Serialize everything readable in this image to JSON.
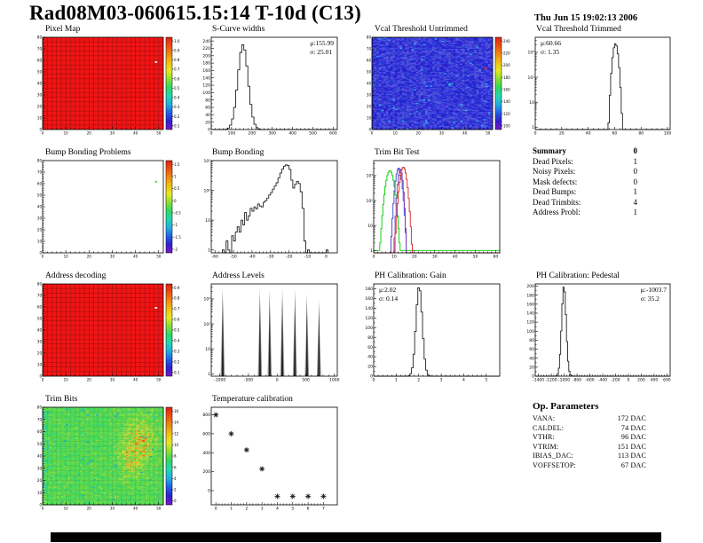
{
  "page": {
    "title": "Rad08M03-060615.15:14 T-10d (C13)",
    "timestamp": "Thu Jun 15 19:02:13 2006"
  },
  "panels": {
    "pixel_map": {
      "title": "Pixel Map"
    },
    "scurve": {
      "title": "S-Curve widths",
      "stats_mu": "μ:155.99",
      "stats_sigma": "σ: 25.01"
    },
    "vcal_untrimmed": {
      "title": "Vcal Threshold Untrimmed"
    },
    "vcal_trimmed": {
      "title": "Vcal Threshold Trimmed",
      "stats_mu": "μ:60.66",
      "stats_sigma": "σ: 1.35"
    },
    "bump_problems": {
      "title": "Bump Bonding Problems"
    },
    "bump_bonding": {
      "title": "Bump Bonding"
    },
    "trim_bit_test": {
      "title": "Trim Bit Test"
    },
    "summary": {
      "title": "Summary",
      "total": "0",
      "rows": [
        {
          "label": "Dead Pixels:",
          "value": "1"
        },
        {
          "label": "Noisy Pixels:",
          "value": "0"
        },
        {
          "label": "Mask defects:",
          "value": "0"
        },
        {
          "label": "Dead Bumps:",
          "value": "1"
        },
        {
          "label": "Dead Trimbits:",
          "value": "4"
        },
        {
          "label": "Address Probl:",
          "value": "1"
        }
      ]
    },
    "address_decoding": {
      "title": "Address decoding"
    },
    "address_levels": {
      "title": "Address Levels"
    },
    "ph_gain": {
      "title": "PH Calibration: Gain",
      "stats_mu": "μ:2.02",
      "stats_sigma": "σ: 0.14"
    },
    "ph_pedestal": {
      "title": "PH Calibration: Pedestal",
      "stats_mu": "μ:-1003.7",
      "stats_sigma": "σ: 35.2"
    },
    "trim_bits": {
      "title": "Trim Bits"
    },
    "temp_cal": {
      "title": "Temperature calibration"
    },
    "op_params": {
      "title": "Op. Parameters",
      "rows": [
        {
          "label": "VANA:",
          "value": "172 DAC"
        },
        {
          "label": "CALDEL:",
          "value": "74 DAC"
        },
        {
          "label": "VTHR:",
          "value": "96 DAC"
        },
        {
          "label": "VTRIM:",
          "value": "151 DAC"
        },
        {
          "label": "IBIAS_DAC:",
          "value": "113 DAC"
        },
        {
          "label": "VOFFSETOP:",
          "value": "67 DAC"
        }
      ]
    }
  },
  "colorbar_palette": [
    "#e02010",
    "#f05010",
    "#f08a10",
    "#f0c010",
    "#e8e820",
    "#8ae030",
    "#30d860",
    "#20d8b0",
    "#20b0e0",
    "#2060e8",
    "#3020d0",
    "#7a18c8"
  ],
  "chart_data": [
    {
      "id": "pixel-map",
      "type": "heatmap",
      "variant": "solid",
      "title": "Pixel Map",
      "base_color": "#f11414",
      "grid_color": "#a50f0f",
      "xlim": [
        0,
        52
      ],
      "ylim": [
        0,
        80
      ],
      "xticks": [
        0,
        10,
        20,
        30,
        40,
        50
      ],
      "yticks": [
        0,
        10,
        20,
        30,
        40,
        50,
        60,
        70,
        80
      ],
      "colorbar_ticks": [
        "1.0",
        "0.9",
        "0.8",
        "0.7",
        "0.6",
        "0.5",
        "0.4",
        "0.3",
        "0.2",
        "0.1"
      ],
      "defects": [
        {
          "fx": 0.93,
          "fy": 0.26,
          "color": "#ffeeee"
        }
      ],
      "seed": 11
    },
    {
      "id": "scurve-widths",
      "type": "hist",
      "title": "S-Curve widths",
      "line_color": "#222222",
      "gauss": {
        "mu": 155.99,
        "sigma": 25.01,
        "amp": 230,
        "binw": 10
      },
      "xlim": [
        0,
        620
      ],
      "xticks": [
        0,
        100,
        200,
        300,
        400,
        500,
        600
      ],
      "yscale": "linear",
      "ymax": 250,
      "ystep": 20,
      "stats": {
        "mu": 155.99,
        "sigma": 25.01
      }
    },
    {
      "id": "vcal-untrimmed",
      "type": "heatmap",
      "variant": "noise-blue",
      "title": "Vcal Threshold Untrimmed",
      "xlim": [
        0,
        52
      ],
      "ylim": [
        0,
        80
      ],
      "xticks": [
        0,
        10,
        20,
        30,
        40,
        50
      ],
      "yticks": [
        0,
        10,
        20,
        30,
        40,
        50,
        60,
        70,
        80
      ],
      "colorbar_ticks": [
        "240",
        "220",
        "200",
        "180",
        "160",
        "140",
        "120",
        "100"
      ],
      "defects": [
        {
          "fx": 0.93,
          "fy": 0.33,
          "color": "#ff2a00"
        }
      ],
      "seed": 77
    },
    {
      "id": "vcal-trimmed",
      "type": "hist",
      "title": "Vcal Threshold Trimmed",
      "line_color": "#222222",
      "gauss": {
        "mu": 60.66,
        "sigma": 1.35,
        "amp": 2200,
        "binw": 1
      },
      "xlim": [
        0,
        102
      ],
      "xticks": [
        0,
        20,
        40,
        60,
        80,
        100
      ],
      "yscale": "log",
      "ymax": 4000,
      "stats": {
        "mu": 60.66,
        "sigma": 1.35
      }
    },
    {
      "id": "bump-problems",
      "type": "heatmap",
      "variant": "empty",
      "title": "Bump Bonding Problems",
      "base_color": "#ffffff",
      "xlim": [
        0,
        52
      ],
      "ylim": [
        0,
        80
      ],
      "xticks": [
        0,
        10,
        20,
        30,
        40,
        50
      ],
      "yticks": [
        0,
        10,
        20,
        30,
        40,
        50,
        60,
        70,
        80
      ],
      "colorbar_ticks": [
        "1.5",
        "1",
        "0.5",
        "0",
        "-0.5",
        "-1",
        "-1.5",
        "-2"
      ],
      "defects": [
        {
          "fx": 0.93,
          "fy": 0.22,
          "color": "#55dd55"
        }
      ],
      "seed": 5
    },
    {
      "id": "bump-bonding",
      "type": "hist",
      "title": "Bump Bonding",
      "line_color": "#222222",
      "bins": {
        "x0": -56,
        "binw": 1,
        "counts": [
          1,
          0,
          2,
          1,
          0,
          3,
          2,
          4,
          6,
          4,
          10,
          7,
          18,
          10,
          14,
          25,
          20,
          28,
          24,
          35,
          30,
          28,
          40,
          45,
          55,
          70,
          85,
          110,
          140,
          180,
          260,
          380,
          520,
          650,
          720,
          680,
          500,
          220,
          120,
          160,
          200,
          170,
          90,
          25,
          2,
          0,
          1,
          0,
          0,
          0,
          0,
          0,
          0,
          0,
          0,
          0,
          1
        ]
      },
      "xlim": [
        -62,
        6
      ],
      "xticks": [
        -60,
        -50,
        -40,
        -30,
        -20,
        -10,
        0
      ],
      "yscale": "log",
      "ymax": 1000
    },
    {
      "id": "trim-bit-test",
      "type": "multi",
      "title": "Trim Bit Test",
      "xlim": [
        0,
        62
      ],
      "xticks": [
        0,
        10,
        20,
        30,
        40,
        50,
        60
      ],
      "yscale": "log",
      "ymax": 4000,
      "series": [
        {
          "color": "#00cc00",
          "gauss": {
            "mu": 8.0,
            "sigma": 1.3,
            "amp": 1600,
            "binw": 0.5
          },
          "baseline": 1
        },
        {
          "color": "#3a3acc",
          "gauss": {
            "mu": 12.3,
            "sigma": 1.0,
            "amp": 2000,
            "binw": 0.5
          }
        },
        {
          "color": "#7a3ab0",
          "gauss": {
            "mu": 13.1,
            "sigma": 0.8,
            "amp": 1800,
            "binw": 0.5
          }
        },
        {
          "color": "#d42222",
          "gauss": {
            "mu": 14.6,
            "sigma": 1.1,
            "amp": 2200,
            "binw": 0.5
          }
        }
      ]
    },
    {
      "id": "address-decoding",
      "type": "heatmap",
      "variant": "solid",
      "title": "Address decoding",
      "base_color": "#f11414",
      "grid_color": "#a50f0f",
      "xlim": [
        0,
        52
      ],
      "ylim": [
        0,
        80
      ],
      "xticks": [
        0,
        10,
        20,
        30,
        40,
        50
      ],
      "yticks": [
        0,
        10,
        20,
        30,
        40,
        50,
        60,
        70,
        80
      ],
      "colorbar_ticks": [
        "0.9",
        "0.8",
        "0.7",
        "0.6",
        "0.5",
        "0.4",
        "0.3",
        "0.2",
        "0.1"
      ],
      "defects": [
        {
          "fx": 0.93,
          "fy": 0.25,
          "color": "#ffffff"
        }
      ],
      "seed": 12
    },
    {
      "id": "address-levels",
      "type": "spikes",
      "title": "Address Levels",
      "xlim": [
        -1150,
        1050
      ],
      "xticks": [
        -1000,
        -500,
        0,
        500,
        1000
      ],
      "yscale": "log",
      "ymax": 4000,
      "spikes": [
        [
          -950,
          2800
        ],
        [
          -300,
          2600
        ],
        [
          -130,
          2300
        ],
        [
          90,
          2500
        ],
        [
          310,
          2500
        ],
        [
          520,
          1600
        ],
        [
          730,
          950
        ]
      ]
    },
    {
      "id": "ph-gain",
      "type": "hist",
      "title": "PH Calibration: Gain",
      "line_color": "#222222",
      "gauss": {
        "mu": 2.02,
        "sigma": 0.14,
        "amp": 185,
        "binw": 0.07
      },
      "xlim": [
        0,
        5.6
      ],
      "xticks": [
        0,
        1,
        2,
        3,
        4,
        5
      ],
      "yscale": "linear",
      "ymax": 190,
      "ystep": 20,
      "stats": {
        "mu": 2.02,
        "sigma": 0.14
      }
    },
    {
      "id": "ph-pedestal",
      "type": "hist",
      "title": "PH Calibration: Pedestal",
      "line_color": "#222222",
      "gauss": {
        "mu": -1003.7,
        "sigma": 35.2,
        "amp": 200,
        "binw": 18
      },
      "xlim": [
        -1450,
        650
      ],
      "xticks": [
        -1400,
        -1200,
        -1000,
        -800,
        -600,
        -400,
        -200,
        0,
        200,
        400,
        600
      ],
      "yscale": "linear",
      "ymax": 205,
      "ystep": 20,
      "stats": {
        "mu": -1003.7,
        "sigma": 35.2
      }
    },
    {
      "id": "trim-bits",
      "type": "heatmap",
      "variant": "noise-trim",
      "title": "Trim Bits",
      "xlim": [
        0,
        52
      ],
      "ylim": [
        0,
        80
      ],
      "xticks": [
        0,
        10,
        20,
        30,
        40,
        50
      ],
      "yticks": [
        0,
        10,
        20,
        30,
        40,
        50,
        60,
        70,
        80
      ],
      "colorbar_ticks": [
        "16",
        "14",
        "12",
        "10",
        "8",
        "6",
        "4",
        "2",
        "0"
      ],
      "seed": 42
    },
    {
      "id": "temp-cal",
      "type": "scatter",
      "title": "Temperature calibration",
      "marker": "asterisk",
      "marker_color": "#111111",
      "points": [
        [
          0,
          800
        ],
        [
          1,
          600
        ],
        [
          2,
          430
        ],
        [
          3,
          230
        ],
        [
          4,
          -60
        ],
        [
          5,
          -60
        ],
        [
          6,
          -60
        ],
        [
          7,
          -60
        ]
      ],
      "xlim": [
        -0.3,
        7.9
      ],
      "xticks": [
        0,
        1,
        2,
        3,
        4,
        5,
        6,
        7
      ],
      "ylim": [
        -150,
        880
      ],
      "yticks": [
        0,
        200,
        400,
        600,
        800
      ]
    }
  ]
}
